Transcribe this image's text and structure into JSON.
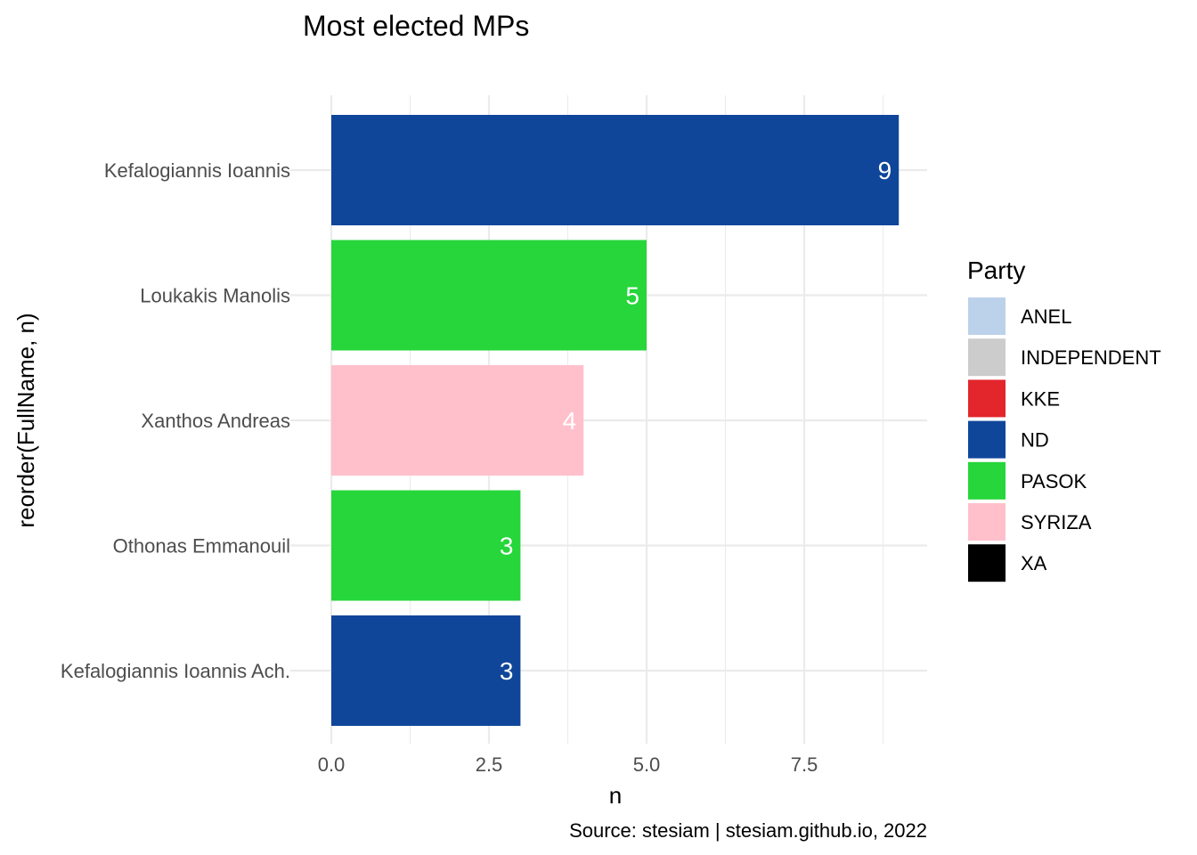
{
  "chart_data": {
    "type": "bar",
    "orientation": "horizontal",
    "title": "Most elected MPs",
    "xlabel": "n",
    "ylabel": "reorder(FullName, n)",
    "caption": "Source: stesiam | stesiam.github.io, 2022",
    "xlim": [
      0,
      9.4
    ],
    "x_ticks": [
      0,
      2.5,
      5,
      7.5
    ],
    "x_tick_labels": [
      "0.0",
      "2.5",
      "5.0",
      "7.5"
    ],
    "grid": true,
    "legend": {
      "title": "Party",
      "position": "right",
      "items": [
        {
          "label": "ANEL",
          "color": "#bcd1ea"
        },
        {
          "label": "INDEPENDENT",
          "color": "#cccccc"
        },
        {
          "label": "KKE",
          "color": "#e3262c"
        },
        {
          "label": "ND",
          "color": "#10469a"
        },
        {
          "label": "PASOK",
          "color": "#26d63a"
        },
        {
          "label": "SYRIZA",
          "color": "#ffc0cc"
        },
        {
          "label": "XA",
          "color": "#000000"
        }
      ]
    },
    "bars": [
      {
        "name": "Kefalogiannis Ioannis",
        "value": 9,
        "party": "ND",
        "label": "9"
      },
      {
        "name": "Loukakis Manolis",
        "value": 5,
        "party": "PASOK",
        "label": "5"
      },
      {
        "name": "Xanthos Andreas",
        "value": 4,
        "party": "SYRIZA",
        "label": "4"
      },
      {
        "name": "Othonas Emmanouil",
        "value": 3,
        "party": "PASOK",
        "label": "3"
      },
      {
        "name": "Kefalogiannis Ioannis Ach.",
        "value": 3,
        "party": "ND",
        "label": "3"
      }
    ]
  }
}
